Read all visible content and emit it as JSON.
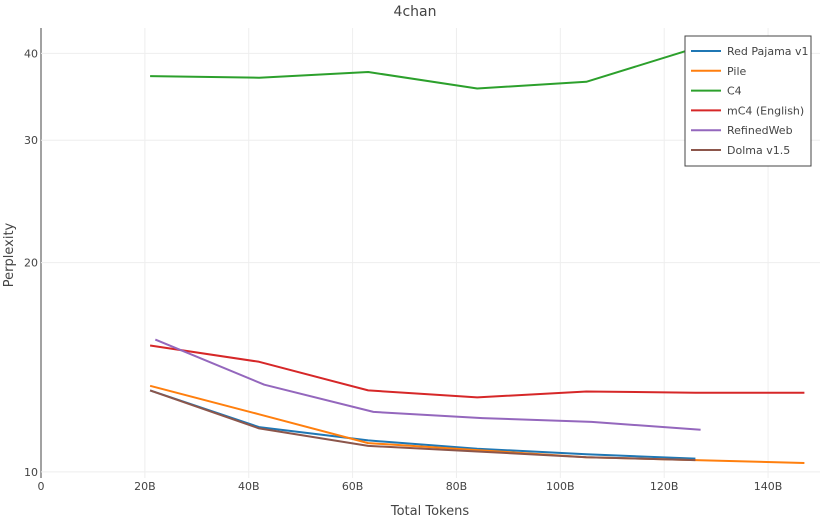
{
  "chart_data": {
    "type": "line",
    "title": "4chan",
    "xlabel": "Total Tokens",
    "ylabel": "Perplexity",
    "y_scale": "log",
    "xlim": [
      0,
      150
    ],
    "ylim": [
      9.8,
      43.5
    ],
    "x_ticks": [
      {
        "value": 0,
        "label": "0"
      },
      {
        "value": 20,
        "label": "20B"
      },
      {
        "value": 40,
        "label": "40B"
      },
      {
        "value": 60,
        "label": "60B"
      },
      {
        "value": 80,
        "label": "80B"
      },
      {
        "value": 100,
        "label": "100B"
      },
      {
        "value": 120,
        "label": "120B"
      },
      {
        "value": 140,
        "label": "140B"
      }
    ],
    "y_ticks": [
      {
        "value": 10,
        "label": "10"
      },
      {
        "value": 20,
        "label": "20"
      },
      {
        "value": 30,
        "label": "30"
      },
      {
        "value": 40,
        "label": "40"
      }
    ],
    "grid": true,
    "legend_position": "top-right",
    "series": [
      {
        "name": "Red Pajama v1",
        "color": "#1f77b4",
        "x": [
          21,
          42,
          63,
          84,
          105,
          126
        ],
        "y": [
          13.1,
          11.6,
          11.1,
          10.8,
          10.6,
          10.45
        ]
      },
      {
        "name": "Pile",
        "color": "#ff7f0e",
        "x": [
          21,
          42,
          63,
          84,
          105,
          126,
          147
        ],
        "y": [
          13.3,
          12.1,
          11.0,
          10.75,
          10.5,
          10.4,
          10.3
        ]
      },
      {
        "name": "C4",
        "color": "#2ca02c",
        "x": [
          21,
          42,
          63,
          84,
          105,
          126
        ],
        "y": [
          37.1,
          36.9,
          37.6,
          35.6,
          36.4,
          40.7
        ]
      },
      {
        "name": "mC4 (English)",
        "color": "#d62728",
        "x": [
          21,
          42,
          63,
          84,
          105,
          126,
          147
        ],
        "y": [
          15.2,
          14.4,
          13.1,
          12.8,
          13.05,
          13.0,
          13.0
        ]
      },
      {
        "name": "RefinedWeb",
        "color": "#9467bd",
        "x": [
          22,
          43,
          64,
          85,
          106,
          127
        ],
        "y": [
          15.5,
          13.35,
          12.2,
          11.95,
          11.8,
          11.5
        ]
      },
      {
        "name": "Dolma v1.5",
        "color": "#8c564b",
        "x": [
          21,
          42,
          63,
          84,
          105,
          126
        ],
        "y": [
          13.1,
          11.55,
          10.9,
          10.7,
          10.5,
          10.4
        ]
      }
    ]
  }
}
